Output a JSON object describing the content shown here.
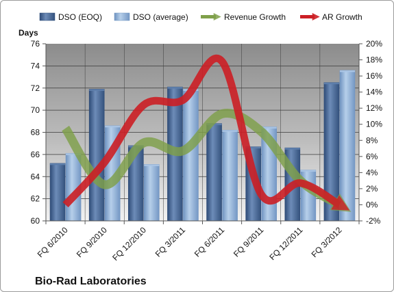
{
  "chart_data": {
    "type": "bar",
    "title": "",
    "company": "Bio-Rad Laboratories",
    "y_left_label": "Days",
    "y_left_range": [
      60,
      76
    ],
    "y_left_ticks": [
      "60",
      "62",
      "64",
      "66",
      "68",
      "70",
      "72",
      "74",
      "76"
    ],
    "y_right_range": [
      -2,
      20
    ],
    "y_right_ticks": [
      "-2%",
      "0%",
      "2%",
      "4%",
      "6%",
      "8%",
      "10%",
      "12%",
      "14%",
      "16%",
      "18%",
      "20%"
    ],
    "categories": [
      "FQ 6/2010",
      "FQ 9/2010",
      "FQ 12/2010",
      "FQ 3/2011",
      "FQ 6/2011",
      "FQ 9/2011",
      "FQ 12/2011",
      "FQ 3/2012"
    ],
    "grid": true,
    "legend_position": "top",
    "series": [
      {
        "name": "DSO (EOQ)",
        "kind": "bar",
        "axis": "left",
        "color": "#4f6d98",
        "values": [
          65.2,
          71.9,
          66.8,
          72.1,
          68.8,
          66.7,
          66.6,
          72.5
        ]
      },
      {
        "name": "DSO (average)",
        "kind": "bar",
        "axis": "left",
        "color": "#8eb0d6",
        "values": [
          66.1,
          68.6,
          65.1,
          71.9,
          68.2,
          68.5,
          64.6,
          73.6
        ]
      },
      {
        "name": "Revenue Growth",
        "kind": "line",
        "axis": "right",
        "color": "#7fa04a",
        "values": [
          9.5,
          2.5,
          7.7,
          6.7,
          11.3,
          9.1,
          3.0,
          0.0
        ]
      },
      {
        "name": "AR Growth",
        "kind": "line",
        "axis": "right",
        "color": "#cc1f25",
        "values": [
          0.0,
          5.3,
          12.4,
          13.0,
          17.8,
          1.3,
          2.7,
          0.0
        ]
      }
    ]
  }
}
